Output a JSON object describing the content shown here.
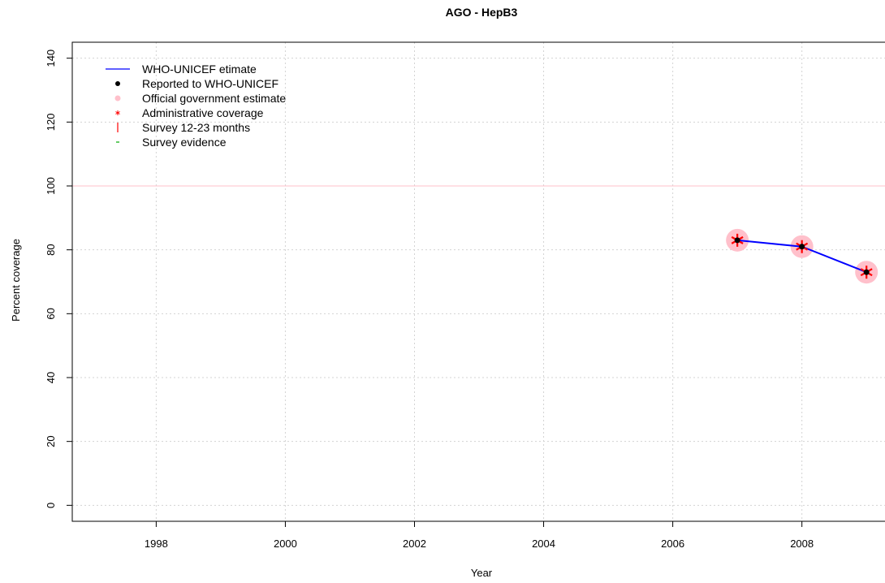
{
  "chart_data": {
    "type": "line",
    "title": "AGO  -  HepB3",
    "xlabel": "Year",
    "ylabel": "Percent coverage",
    "xlim": [
      1996.7,
      2009.4
    ],
    "ylim": [
      -5,
      145
    ],
    "x_ticks": [
      1998,
      2000,
      2002,
      2004,
      2006,
      2008
    ],
    "y_ticks": [
      0,
      20,
      40,
      60,
      80,
      100,
      120,
      140
    ],
    "grid": true,
    "reference_line": {
      "y": 100,
      "color": "#ffc0cb"
    },
    "legend": {
      "position": "top-left",
      "entries": [
        {
          "label": "WHO-UNICEF etimate",
          "symbol": "line",
          "color": "#0000ff"
        },
        {
          "label": "Reported to WHO-UNICEF",
          "symbol": "dot",
          "color": "#000000"
        },
        {
          "label": "Official government estimate",
          "symbol": "circle",
          "color": "#ffc0cb"
        },
        {
          "label": "Administrative coverage",
          "symbol": "asterisk",
          "color": "#ff0000"
        },
        {
          "label": "Survey 12-23 months",
          "symbol": "vbar",
          "color": "#ff0000"
        },
        {
          "label": "Survey evidence",
          "symbol": "dash",
          "color": "#00aa00"
        }
      ]
    },
    "series": [
      {
        "name": "WHO-UNICEF etimate",
        "x": [
          2007,
          2008,
          2009
        ],
        "values": [
          83,
          81,
          73
        ],
        "color": "#0000ff"
      },
      {
        "name": "Reported to WHO-UNICEF",
        "x": [
          2007,
          2008,
          2009
        ],
        "values": [
          83,
          81,
          73
        ],
        "color": "#000000"
      },
      {
        "name": "Official government estimate",
        "x": [
          2007,
          2008,
          2009
        ],
        "values": [
          83,
          81,
          73
        ],
        "color": "#ffc0cb"
      },
      {
        "name": "Administrative coverage",
        "x": [
          2007,
          2008,
          2009
        ],
        "values": [
          83,
          81,
          73
        ],
        "color": "#ff0000"
      }
    ]
  }
}
